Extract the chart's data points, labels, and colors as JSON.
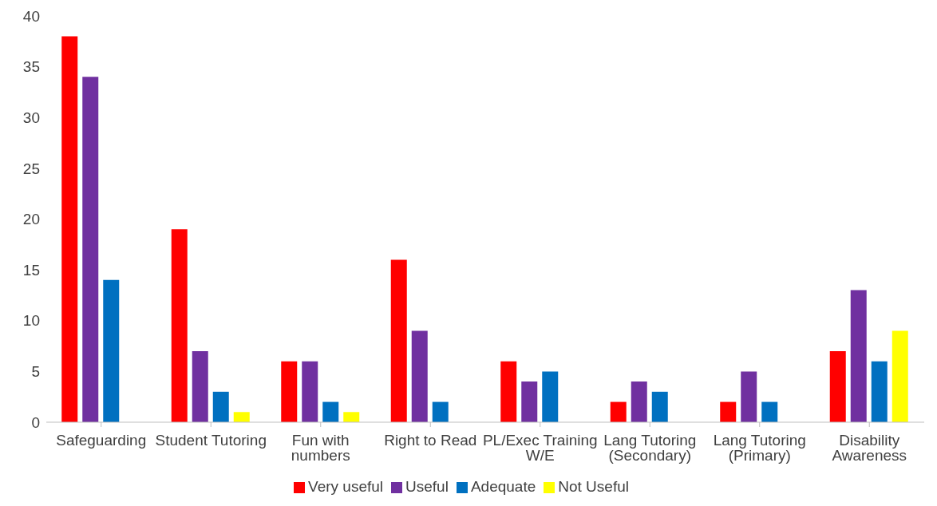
{
  "chart_data": {
    "type": "bar",
    "categories": [
      "Safeguarding",
      "Student Tutoring",
      "Fun with numbers",
      "Right to Read",
      "PL/Exec Training W/E",
      "Lang Tutoring (Secondary)",
      "Lang Tutoring (Primary)",
      "Disability Awareness"
    ],
    "series": [
      {
        "name": "Very useful",
        "color": "#ff0000",
        "values": [
          38,
          19,
          6,
          16,
          6,
          2,
          2,
          7
        ]
      },
      {
        "name": "Useful",
        "color": "#7030a0",
        "values": [
          34,
          7,
          6,
          9,
          4,
          4,
          5,
          13
        ]
      },
      {
        "name": "Adequate",
        "color": "#0070c0",
        "values": [
          14,
          3,
          2,
          2,
          5,
          3,
          2,
          6
        ]
      },
      {
        "name": "Not Useful",
        "color": "#ffff00",
        "values": [
          0,
          1,
          1,
          0,
          0,
          0,
          0,
          9
        ]
      }
    ],
    "ylim": [
      0,
      40
    ],
    "yticks": [
      0,
      5,
      10,
      15,
      20,
      25,
      30,
      35,
      40
    ],
    "grid": false,
    "legend": "bottom"
  }
}
